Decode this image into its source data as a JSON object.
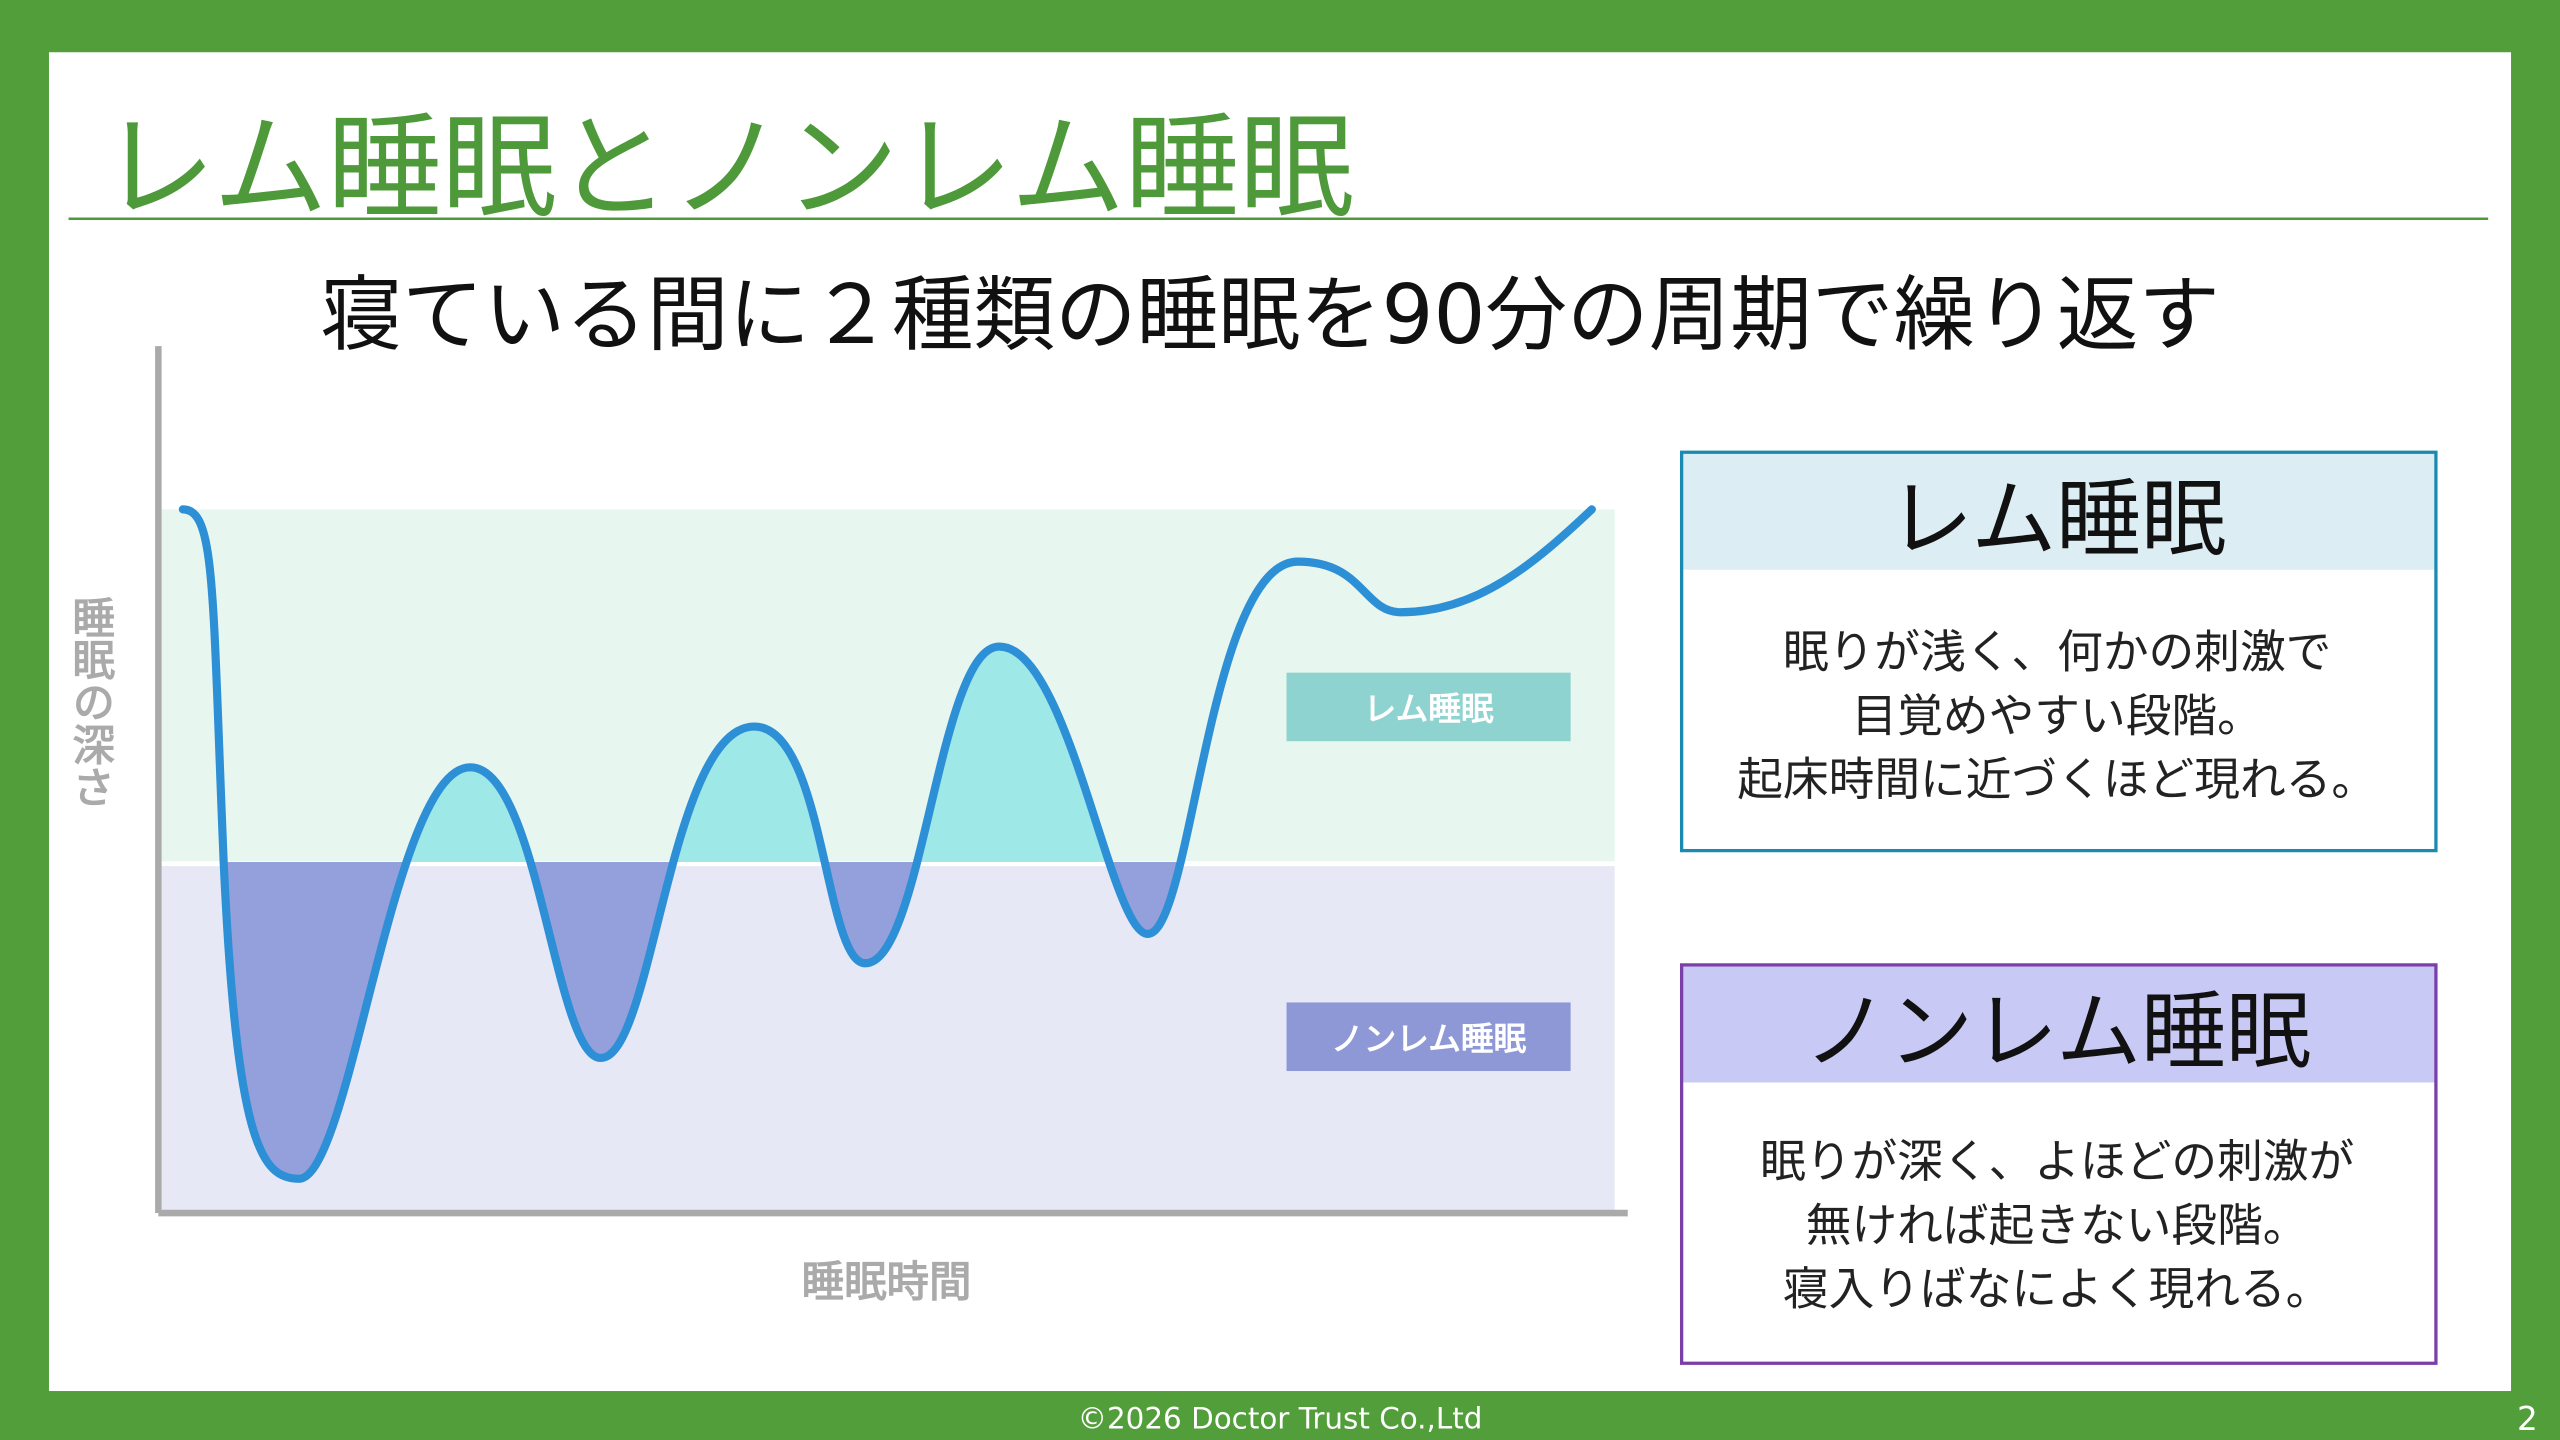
{
  "header": {
    "title": "レム睡眠とノンレム睡眠",
    "subtitle": "寝ている間に２種類の睡眠を90分の周期で繰り返す"
  },
  "diagram": {
    "y_axis_label": "睡眠の深さ",
    "x_axis_label": "睡眠時間",
    "rem_label": "レム睡眠",
    "nonrem_label": "ノンレム睡眠"
  },
  "cards": [
    {
      "title": "レム睡眠",
      "body": [
        "眠りが浅く、何かの刺激で",
        "目覚めやすい段階。",
        "起床時間に近づくほど現れる。"
      ]
    },
    {
      "title": "ノンレム睡眠",
      "body": [
        "眠りが深く、よほどの刺激が",
        "無ければ起きない段階。",
        "寝入りばなによく現れる。"
      ]
    }
  ],
  "footer": {
    "copyright": "©2026  Doctor Trust Co.,Ltd",
    "page_number": "2"
  }
}
